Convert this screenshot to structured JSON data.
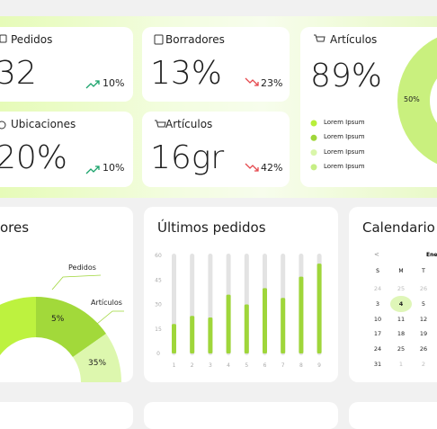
{
  "kpis": [
    {
      "label": "Pedidos",
      "value": "32",
      "change": "10%"
    },
    {
      "label": "Borradores",
      "value": "13%",
      "change": "23%"
    },
    {
      "label": "Ubicaciones",
      "value": "20%",
      "change": "10%"
    },
    {
      "label": "Artículos",
      "value": "16gr",
      "change": "42%"
    }
  ],
  "articles_card": {
    "title": "Artículos",
    "value": "89%",
    "donut_label": "50%",
    "legend": [
      "Lorem Ipsum",
      "Lorem Ipsum",
      "Lorem Ipsum",
      "Lorem Ipsum"
    ],
    "legend_colors": [
      "#b8ef3a",
      "#9fd63a",
      "#d9f6a9",
      "#c6ee85"
    ]
  },
  "orders_donut": {
    "title": "ores",
    "annotations": [
      "Pedidos",
      "Artículos"
    ],
    "labels": [
      "5%",
      "35%"
    ]
  },
  "last_orders": {
    "type": "bar",
    "title": "Últimos pedidos",
    "categories": [
      "1",
      "2",
      "3",
      "4",
      "5",
      "6",
      "7",
      "8",
      "9"
    ],
    "values": [
      18,
      23,
      22,
      36,
      30,
      40,
      34,
      47,
      55
    ],
    "color": "#9fd63a",
    "ylim": [
      0,
      60
    ],
    "yticks": [
      0,
      15,
      30,
      45,
      60
    ]
  },
  "calendar": {
    "title": "Calendario",
    "prev": "<",
    "month": "Ene",
    "weekdays": [
      "S",
      "M",
      "T"
    ],
    "rows": [
      [
        "24",
        "25",
        "26"
      ],
      [
        "3",
        "4",
        "5"
      ],
      [
        "10",
        "11",
        "12"
      ],
      [
        "17",
        "18",
        "19"
      ],
      [
        "24",
        "25",
        "26"
      ],
      [
        "31",
        "1",
        "2"
      ]
    ]
  }
}
